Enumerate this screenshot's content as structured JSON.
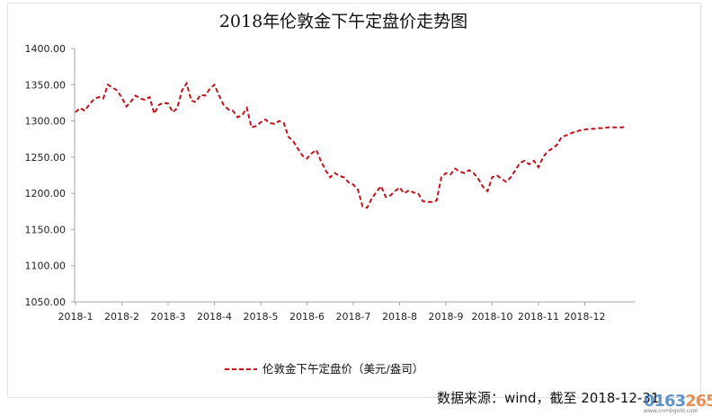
{
  "chart_data": {
    "type": "line",
    "title": "2018年伦敦金下午定盘价走势图",
    "xlabel": "",
    "ylabel": "",
    "ylim": [
      1050,
      1400
    ],
    "yticks": [
      "1400.00",
      "1350.00",
      "1300.00",
      "1250.00",
      "1200.00",
      "1150.00",
      "1100.00",
      "1050.00"
    ],
    "ytick_values": [
      1400,
      1350,
      1300,
      1250,
      1200,
      1150,
      1100,
      1050
    ],
    "categories": [
      "2018-1",
      "2018-2",
      "2018-3",
      "2018-4",
      "2018-5",
      "2018-6",
      "2018-7",
      "2018-8",
      "2018-9",
      "2018-10",
      "2018-11",
      "2018-12"
    ],
    "legend_position": "bottom",
    "grid": false,
    "series": [
      {
        "name": "伦敦金下午定盘价（美元/盎司）",
        "color": "#c0141c",
        "style": "dashed",
        "x": [
          0.0,
          0.1,
          0.2,
          0.3,
          0.4,
          0.5,
          0.6,
          0.7,
          0.8,
          0.9,
          1.0,
          1.1,
          1.2,
          1.3,
          1.4,
          1.5,
          1.6,
          1.7,
          1.8,
          1.9,
          2.0,
          2.1,
          2.2,
          2.3,
          2.4,
          2.5,
          2.6,
          2.7,
          2.8,
          2.9,
          3.0,
          3.1,
          3.2,
          3.3,
          3.4,
          3.5,
          3.6,
          3.7,
          3.8,
          3.9,
          4.0,
          4.1,
          4.2,
          4.3,
          4.4,
          4.5,
          4.6,
          4.7,
          4.8,
          4.9,
          5.0,
          5.1,
          5.2,
          5.3,
          5.4,
          5.5,
          5.6,
          5.7,
          5.8,
          5.9,
          6.0,
          6.1,
          6.2,
          6.3,
          6.4,
          6.5,
          6.6,
          6.7,
          6.8,
          6.9,
          7.0,
          7.1,
          7.2,
          7.3,
          7.4,
          7.5,
          7.6,
          7.7,
          7.8,
          7.9,
          8.0,
          8.1,
          8.2,
          8.3,
          8.4,
          8.5,
          8.6,
          8.7,
          8.8,
          8.9,
          9.0,
          9.1,
          9.2,
          9.3,
          9.4,
          9.5,
          9.6,
          9.7,
          9.8,
          9.9,
          10.0,
          10.1,
          10.2,
          10.3,
          10.4,
          10.5,
          10.6,
          10.7,
          10.8,
          10.9,
          11.0,
          11.1,
          11.2,
          11.3,
          11.4,
          11.5,
          11.6,
          11.7,
          11.8,
          11.9
        ],
        "values": [
          1312,
          1318,
          1314,
          1323,
          1330,
          1333,
          1331,
          1350,
          1346,
          1342,
          1332,
          1320,
          1327,
          1335,
          1331,
          1329,
          1333,
          1310,
          1322,
          1325,
          1324,
          1312,
          1318,
          1342,
          1352,
          1328,
          1326,
          1336,
          1335,
          1344,
          1350,
          1335,
          1322,
          1316,
          1314,
          1305,
          1308,
          1318,
          1291,
          1293,
          1298,
          1302,
          1297,
          1296,
          1300,
          1297,
          1278,
          1272,
          1262,
          1252,
          1248,
          1255,
          1260,
          1245,
          1232,
          1222,
          1228,
          1224,
          1222,
          1215,
          1212,
          1205,
          1182,
          1180,
          1193,
          1202,
          1210,
          1195,
          1197,
          1203,
          1208,
          1200,
          1204,
          1201,
          1200,
          1189,
          1188,
          1188,
          1190,
          1222,
          1228,
          1226,
          1234,
          1230,
          1228,
          1232,
          1228,
          1220,
          1209,
          1203,
          1222,
          1225,
          1220,
          1216,
          1222,
          1232,
          1242,
          1245,
          1240,
          1245,
          1236,
          1250,
          1258,
          1262,
          1267,
          1278,
          1280,
          1283,
          1285,
          1287,
          1288,
          1289,
          1289,
          1290,
          1290,
          1291,
          1291,
          1291,
          1291,
          1292
        ]
      }
    ]
  },
  "source_note": "数据来源：wind，截至 2018-12-31",
  "watermark": {
    "part1": "0163",
    "part2": "265",
    "sub": "www.cnmbgold.com"
  }
}
